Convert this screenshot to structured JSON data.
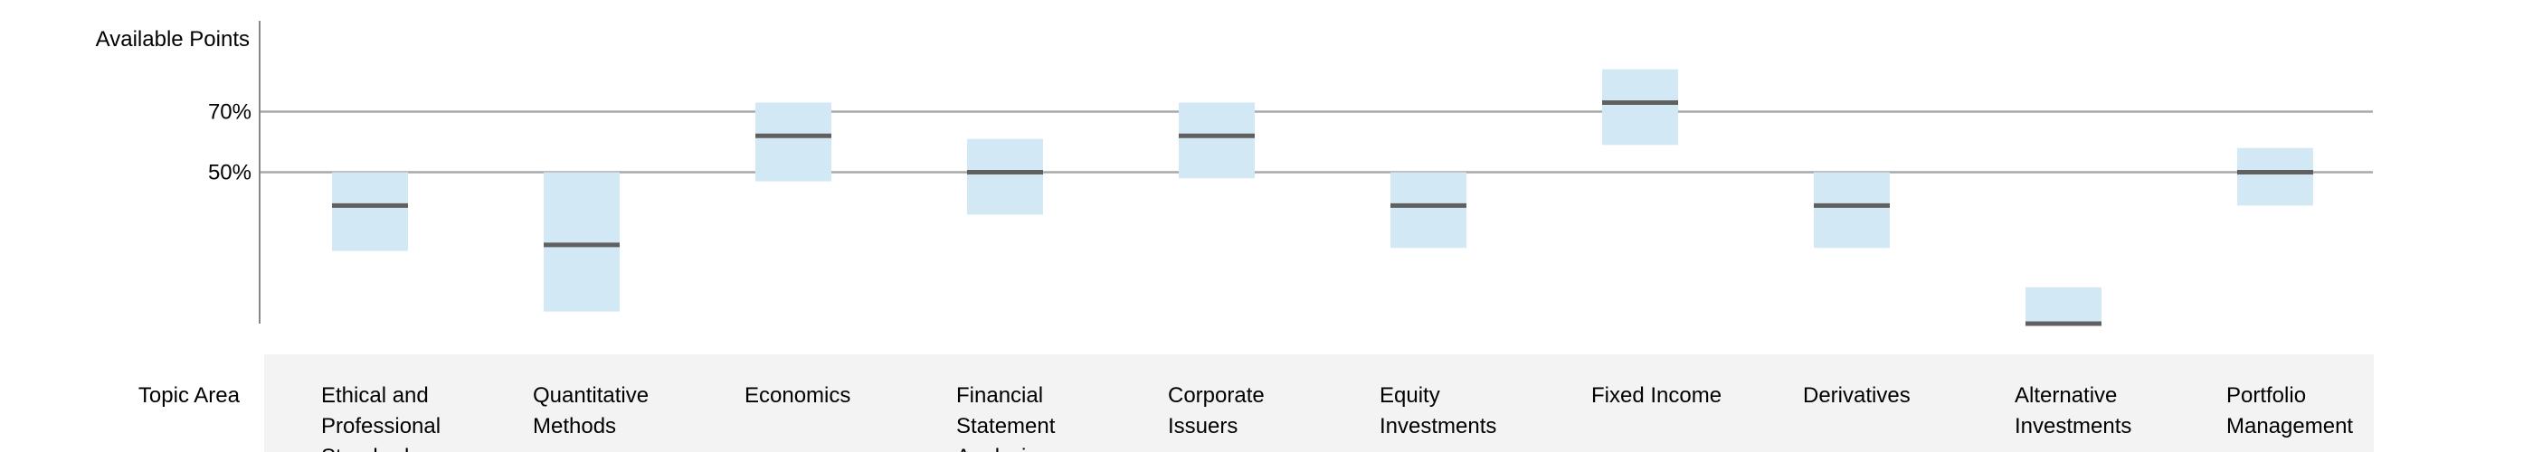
{
  "chart_data": {
    "type": "bar",
    "title": "",
    "ylabel": "Available Points",
    "xlabel": "Topic Area",
    "ylim": [
      0,
      100
    ],
    "y_reference_lines": [
      {
        "value": 70,
        "label": "70%"
      },
      {
        "value": 50,
        "label": "50%"
      }
    ],
    "categories": [
      "Ethical and Professional Standards",
      "Quantitative Methods",
      "Economics",
      "Financial Statement Analysis",
      "Corporate Issuers",
      "Equity Investments",
      "Fixed Income",
      "Derivatives",
      "Alternative Investments",
      "Portfolio Management"
    ],
    "series": [
      {
        "values": [
          39,
          26,
          62,
          50,
          62,
          39,
          73,
          39,
          0,
          50
        ]
      }
    ],
    "ranges": [
      {
        "low": 24,
        "high": 50
      },
      {
        "low": 4,
        "high": 50
      },
      {
        "low": 47,
        "high": 73
      },
      {
        "low": 36,
        "high": 61
      },
      {
        "low": 48,
        "high": 73
      },
      {
        "low": 25,
        "high": 50
      },
      {
        "low": 59,
        "high": 84
      },
      {
        "low": 25,
        "high": 50
      },
      {
        "low": 0,
        "high": 12
      },
      {
        "low": 39,
        "high": 58
      }
    ],
    "grid": false,
    "colors": {
      "range_fill": "#d2e8f4",
      "median_line": "#606060",
      "reference_line": "#a9a9a9",
      "axis": "#888888",
      "category_band": "#f3f3f3"
    }
  }
}
